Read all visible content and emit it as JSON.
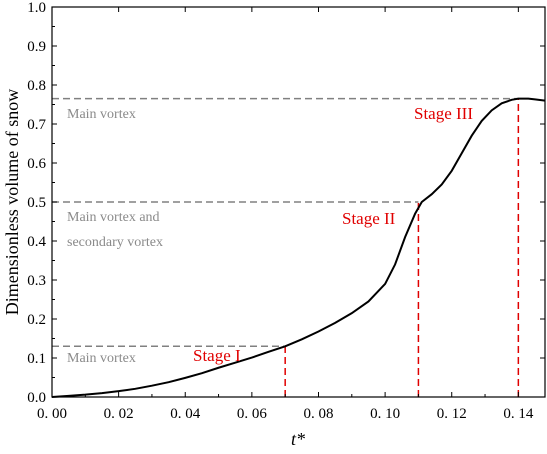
{
  "chart_data": {
    "type": "line",
    "xlabel": "t*",
    "ylabel": "Dimensionless volume of snow",
    "xlim": [
      0.0,
      0.148
    ],
    "ylim": [
      0.0,
      1.0
    ],
    "x_ticks": [
      0.0,
      0.02,
      0.04,
      0.06,
      0.08,
      0.1,
      0.12,
      0.14
    ],
    "x_tick_labels": [
      "0. 00",
      "0. 02",
      "0. 04",
      "0. 06",
      "0. 08",
      "0. 10",
      "0. 12",
      "0. 14"
    ],
    "y_ticks": [
      0.0,
      0.1,
      0.2,
      0.3,
      0.4,
      0.5,
      0.6,
      0.7,
      0.8,
      0.9,
      1.0
    ],
    "y_tick_labels": [
      "0.0",
      "0.1",
      "0.2",
      "0.3",
      "0.4",
      "0.5",
      "0.6",
      "0.7",
      "0.8",
      "0.9",
      "1.0"
    ],
    "grid": false,
    "series": [
      {
        "color": "#000000",
        "x": [
          0.0,
          0.005,
          0.01,
          0.015,
          0.02,
          0.025,
          0.03,
          0.035,
          0.04,
          0.045,
          0.05,
          0.055,
          0.06,
          0.065,
          0.07,
          0.075,
          0.08,
          0.085,
          0.09,
          0.095,
          0.1,
          0.103,
          0.106,
          0.109,
          0.111,
          0.114,
          0.117,
          0.12,
          0.123,
          0.126,
          0.129,
          0.132,
          0.135,
          0.138,
          0.14,
          0.143,
          0.145,
          0.148
        ],
        "y": [
          0.0,
          0.003,
          0.006,
          0.01,
          0.015,
          0.021,
          0.029,
          0.038,
          0.049,
          0.061,
          0.075,
          0.088,
          0.101,
          0.116,
          0.13,
          0.148,
          0.168,
          0.19,
          0.215,
          0.245,
          0.29,
          0.34,
          0.41,
          0.47,
          0.5,
          0.52,
          0.545,
          0.58,
          0.625,
          0.67,
          0.708,
          0.735,
          0.753,
          0.762,
          0.765,
          0.765,
          0.763,
          0.76
        ]
      }
    ],
    "reference_lines": [
      {
        "orientation": "horizontal",
        "y": 0.13,
        "x_from": 0.0,
        "x_to": 0.07,
        "color": "#808080"
      },
      {
        "orientation": "horizontal",
        "y": 0.5,
        "x_from": 0.0,
        "x_to": 0.11,
        "color": "#808080"
      },
      {
        "orientation": "horizontal",
        "y": 0.765,
        "x_from": 0.0,
        "x_to": 0.14,
        "color": "#808080"
      },
      {
        "orientation": "vertical",
        "x": 0.07,
        "y_from": 0.0,
        "y_to": 0.13,
        "color": "#e00000"
      },
      {
        "orientation": "vertical",
        "x": 0.11,
        "y_from": 0.0,
        "y_to": 0.5,
        "color": "#e00000"
      },
      {
        "orientation": "vertical",
        "x": 0.14,
        "y_from": 0.0,
        "y_to": 0.765,
        "color": "#e00000"
      }
    ],
    "annotations": {
      "main_vortex_low": "Main vortex",
      "main_secondary_line1": "Main vortex and",
      "main_secondary_line2": "secondary vortex",
      "main_vortex_high": "Main vortex",
      "stage_1": "Stage I",
      "stage_2": "Stage II",
      "stage_3": "Stage III"
    }
  }
}
